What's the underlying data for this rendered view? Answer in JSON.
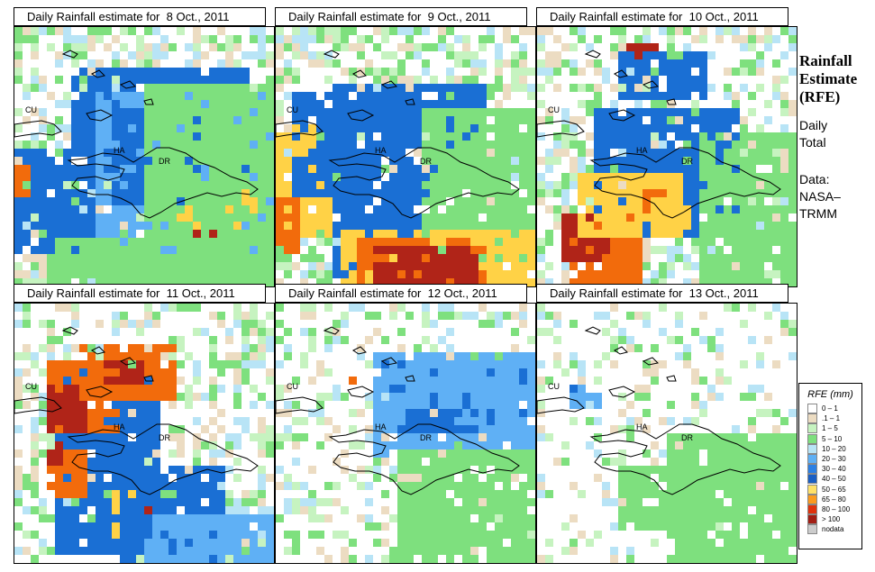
{
  "panels": [
    {
      "title": "Daily Rainfall estimate for  8 Oct., 2011",
      "labels": [
        "CU",
        "HA",
        "DR"
      ],
      "blobs": [
        [
          "#1a6fd4",
          20,
          15,
          70,
          40
        ],
        [
          "#5fb0f5",
          30,
          25,
          110,
          60
        ],
        [
          "#1a6fd4",
          36,
          30,
          45,
          38
        ],
        [
          "#ffd246",
          62,
          62,
          30,
          18
        ],
        [
          "#b02418",
          66,
          64,
          14,
          9
        ],
        [
          "#f26b0c",
          68,
          76,
          18,
          8
        ],
        [
          "#b02418",
          68,
          76,
          10,
          5
        ],
        [
          "#1a6fd4",
          0,
          45,
          30,
          40
        ],
        [
          "#f26b0c",
          0,
          52,
          6,
          12
        ],
        [
          "#7ee07e",
          50,
          20,
          100,
          80
        ],
        [
          "#7ee07e",
          10,
          80,
          80,
          40
        ]
      ]
    },
    {
      "title": "Daily Rainfall estimate for  9 Oct., 2011",
      "labels": [
        "CU",
        "HA",
        "DR"
      ],
      "blobs": [
        [
          "#1a6fd4",
          20,
          20,
          60,
          45
        ],
        [
          "#7ee07e",
          55,
          30,
          70,
          60
        ],
        [
          "#1a6fd4",
          20,
          60,
          35,
          35
        ],
        [
          "#ffd246",
          22,
          78,
          80,
          25
        ],
        [
          "#f26b0c",
          30,
          80,
          50,
          20
        ],
        [
          "#b02418",
          35,
          82,
          40,
          15
        ],
        [
          "#ffd246",
          0,
          50,
          20,
          30
        ],
        [
          "#f26b0c",
          0,
          65,
          8,
          20
        ],
        [
          "#1a6fd4",
          5,
          25,
          20,
          40
        ],
        [
          "#ffd246",
          0,
          35,
          15,
          14
        ]
      ]
    },
    {
      "title": "Daily Rainfall estimate for  10 Oct., 2011",
      "labels": [
        "CU",
        "HA",
        "DR"
      ],
      "blobs": [
        [
          "#1a6fd4",
          20,
          30,
          55,
          50
        ],
        [
          "#f26b0c",
          10,
          70,
          30,
          35
        ],
        [
          "#b02418",
          8,
          70,
          20,
          18
        ],
        [
          "#ffd246",
          15,
          55,
          40,
          25
        ],
        [
          "#1a6fd4",
          30,
          8,
          35,
          20
        ],
        [
          "#b02418",
          32,
          4,
          12,
          8
        ],
        [
          "#f26b0c",
          38,
          60,
          12,
          10
        ],
        [
          "#7ee07e",
          60,
          40,
          60,
          70
        ],
        [
          "#ffd246",
          42,
          65,
          15,
          10
        ]
      ]
    },
    {
      "title": "Daily Rainfall estimate for  11 Oct., 2011",
      "labels": [
        "CU",
        "HA",
        "DR"
      ],
      "blobs": [
        [
          "#1a6fd4",
          15,
          25,
          40,
          70
        ],
        [
          "#f26b0c",
          10,
          20,
          30,
          30
        ],
        [
          "#b02418",
          12,
          30,
          14,
          20
        ],
        [
          "#f26b0c",
          25,
          15,
          35,
          20
        ],
        [
          "#b02418",
          34,
          20,
          14,
          10
        ],
        [
          "#ffd246",
          35,
          70,
          20,
          18
        ],
        [
          "#b02418",
          42,
          72,
          10,
          8
        ],
        [
          "#1a6fd4",
          40,
          60,
          40,
          40
        ],
        [
          "#5fb0f5",
          50,
          80,
          60,
          50
        ],
        [
          "#f26b0c",
          12,
          55,
          14,
          18
        ],
        [
          "#b02418",
          10,
          52,
          8,
          9
        ]
      ]
    },
    {
      "title": "Daily Rainfall estimate for  12 Oct., 2011",
      "labels": [
        "CU",
        "HA",
        "DR"
      ],
      "blobs": [
        [
          "#1a6fd4",
          40,
          20,
          55,
          30
        ],
        [
          "#5fb0f5",
          35,
          18,
          65,
          40
        ],
        [
          "#7ee07e",
          45,
          55,
          100,
          60
        ],
        [
          "#f26b0c",
          28,
          26,
          6,
          5
        ],
        [
          "#1a6fd4",
          50,
          38,
          20,
          10
        ]
      ]
    },
    {
      "title": "Daily Rainfall estimate for  13 Oct., 2011",
      "labels": [
        "CU",
        "HA",
        "DR"
      ],
      "blobs": [
        [
          "#7ee07e",
          50,
          50,
          70,
          60
        ],
        [
          "#5fb0f5",
          10,
          30,
          12,
          10
        ],
        [
          "#1a6fd4",
          10,
          30,
          5,
          4
        ],
        [
          "#7ee07e",
          30,
          60,
          30,
          25
        ]
      ]
    }
  ],
  "side": {
    "title_lines": [
      "Rainfall",
      "Estimate",
      "(RFE)"
    ],
    "daily_lines": [
      "Daily",
      "Total"
    ],
    "data_lines": [
      "Data:",
      "NASA–",
      "TRMM"
    ]
  },
  "legend": {
    "title": "RFE (mm)",
    "items": [
      {
        "label": "0 – 1",
        "color": "#ffffff"
      },
      {
        "label": ".1 – 1",
        "color": "#ecdcc2"
      },
      {
        "label": "1 – 5",
        "color": "#c6f3c0"
      },
      {
        "label": "5 – 10",
        "color": "#7ee07e"
      },
      {
        "label": "10 – 20",
        "color": "#b8e4f6"
      },
      {
        "label": "20 – 30",
        "color": "#5fb0f5"
      },
      {
        "label": "30 – 40",
        "color": "#2c80e4"
      },
      {
        "label": "40 – 50",
        "color": "#1a5fc4"
      },
      {
        "label": "50 – 65",
        "color": "#ffe168"
      },
      {
        "label": "65 – 80",
        "color": "#fb9a1e"
      },
      {
        "label": "80 – 100",
        "color": "#e0320c"
      },
      {
        "label": "> 100",
        "color": "#a21e14"
      },
      {
        "label": "nodata",
        "color": "#cccccc"
      }
    ]
  }
}
